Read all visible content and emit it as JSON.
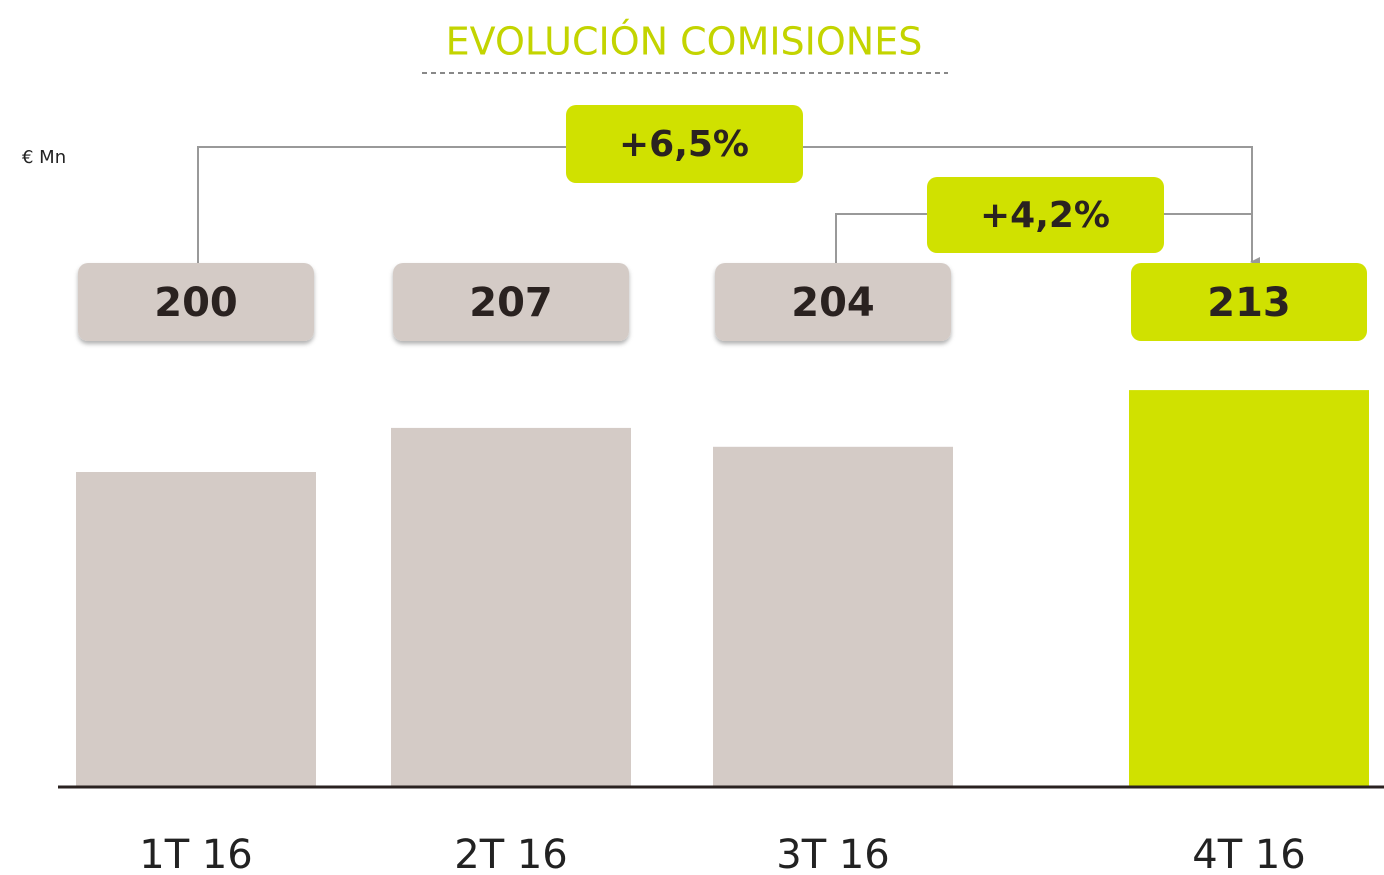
{
  "chart_data": {
    "type": "bar",
    "title": "EVOLUCIÓN COMISIONES",
    "ylabel": "€ Mn",
    "categories": [
      "1T 16",
      "2T 16",
      "3T 16",
      "4T 16"
    ],
    "values": [
      200,
      207,
      204,
      213
    ],
    "colors": [
      "#d4cbc6",
      "#d4cbc6",
      "#d4cbc6",
      "#d0e100"
    ],
    "ylim": [
      150,
      220
    ],
    "annotations": [
      "+6,5%",
      "+4,2%"
    ]
  }
}
